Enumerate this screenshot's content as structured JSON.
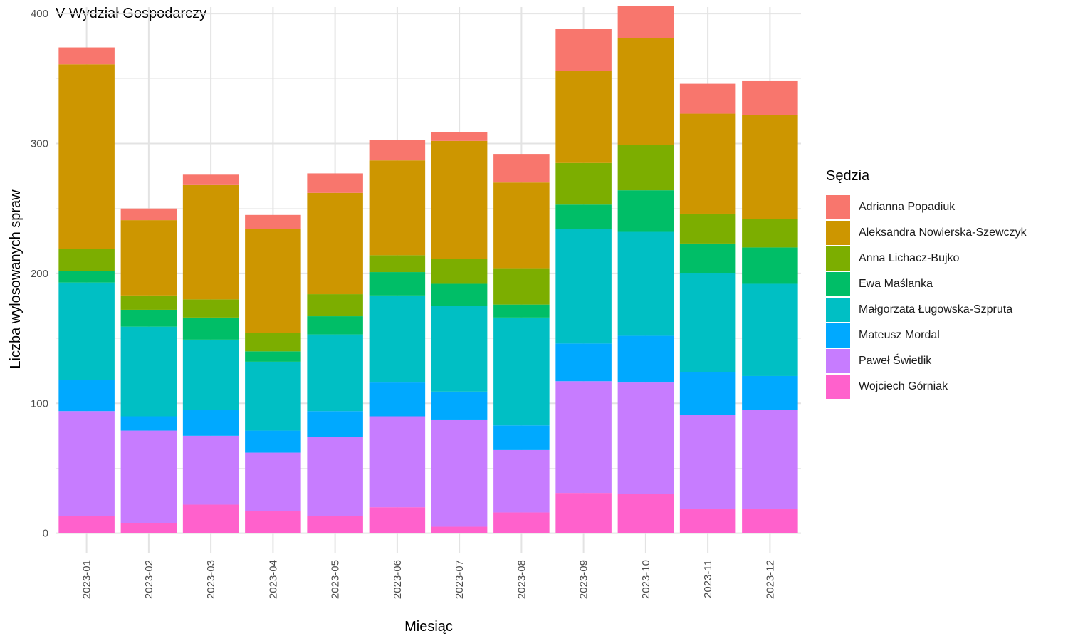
{
  "chart_data": {
    "type": "bar",
    "stacked": true,
    "title": "V Wydział Gospodarczy",
    "xlabel": "Miesiąc",
    "ylabel": "Liczba wylosowanych spraw",
    "ylim": [
      -15,
      405
    ],
    "yticks": [
      0,
      100,
      200,
      300,
      400
    ],
    "grid": true,
    "legend_position": "right",
    "legend_title": "Sędzia",
    "categories": [
      "2023-01",
      "2023-02",
      "2023-03",
      "2023-04",
      "2023-05",
      "2023-06",
      "2023-07",
      "2023-08",
      "2023-09",
      "2023-10",
      "2023-11",
      "2023-12"
    ],
    "series": [
      {
        "name": "Adrianna Popadiuk",
        "color": "#F8766D",
        "values": [
          13,
          9,
          8,
          11,
          15,
          16,
          7,
          22,
          32,
          25,
          23,
          26
        ]
      },
      {
        "name": "Aleksandra Nowierska-Szewczyk",
        "color": "#CD9600",
        "values": [
          142,
          58,
          88,
          80,
          78,
          73,
          91,
          66,
          71,
          82,
          77,
          80
        ]
      },
      {
        "name": "Anna Lichacz-Bujko",
        "color": "#7CAE00",
        "values": [
          17,
          11,
          14,
          14,
          17,
          13,
          19,
          28,
          32,
          35,
          23,
          22
        ]
      },
      {
        "name": "Ewa Maślanka",
        "color": "#00BE67",
        "values": [
          9,
          13,
          17,
          8,
          14,
          18,
          17,
          10,
          19,
          32,
          23,
          28
        ]
      },
      {
        "name": "Małgorzata Ługowska-Szpruta",
        "color": "#00BFC4",
        "values": [
          75,
          69,
          54,
          53,
          59,
          67,
          66,
          83,
          88,
          80,
          76,
          71
        ]
      },
      {
        "name": "Mateusz Mordal",
        "color": "#00A9FF",
        "values": [
          24,
          11,
          20,
          17,
          20,
          26,
          22,
          19,
          29,
          36,
          33,
          26
        ]
      },
      {
        "name": "Paweł Świetlik",
        "color": "#C77CFF",
        "values": [
          81,
          71,
          53,
          45,
          61,
          70,
          82,
          48,
          86,
          86,
          72,
          76
        ]
      },
      {
        "name": "Wojciech Górniak",
        "color": "#FF61CC",
        "values": [
          13,
          8,
          22,
          17,
          13,
          20,
          5,
          16,
          31,
          30,
          19,
          19
        ]
      }
    ]
  }
}
